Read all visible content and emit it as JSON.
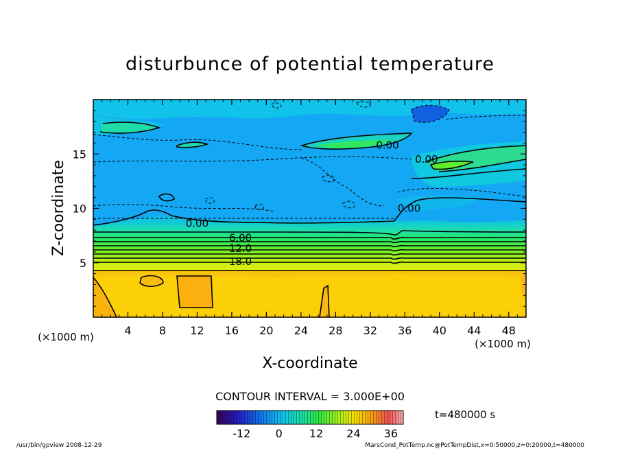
{
  "chart_data": {
    "type": "heatmap",
    "title": "disturbunce of potential temperature",
    "xlabel": "X-coordinate",
    "ylabel": "Z-coordinate",
    "x_unit": "(×1000 m)",
    "y_unit": "(×1000 m)",
    "xlim": [
      0,
      50
    ],
    "ylim": [
      0,
      20
    ],
    "x_ticks": [
      4,
      8,
      12,
      16,
      20,
      24,
      28,
      32,
      36,
      40,
      44,
      48
    ],
    "y_ticks": [
      5,
      10,
      15
    ],
    "contour_labels": [
      {
        "text": "0.00",
        "x": 12.0,
        "z": 8.6
      },
      {
        "text": "6.00",
        "x": 17.0,
        "z": 7.3
      },
      {
        "text": "12.0",
        "x": 17.0,
        "z": 6.3
      },
      {
        "text": "18.0",
        "x": 17.0,
        "z": 5.1
      },
      {
        "text": "0.00",
        "x": 34.0,
        "z": 15.8
      },
      {
        "text": "0.00",
        "x": 38.5,
        "z": 14.5
      },
      {
        "text": "0.00",
        "x": 36.5,
        "z": 10.0
      }
    ],
    "field_summary": [
      {
        "z_range": [
          0,
          4.5
        ],
        "value": 27
      },
      {
        "z_range": [
          4.5,
          8.5
        ],
        "value": "gradient 24 to 3"
      },
      {
        "z_range": [
          8.5,
          20
        ],
        "value": 0
      }
    ],
    "contour_interval_label": "CONTOUR INTERVAL = 3.000E+00",
    "colorbar": {
      "ticks": [
        -12,
        0,
        12,
        24,
        36
      ],
      "range": [
        -20,
        40
      ]
    },
    "time_label": "t=480000 s",
    "grid": false
  },
  "footer": {
    "left": "/usr/bin/gpview   2008-12-29",
    "right": "MarsCond_PotTemp.nc@PotTempDist,x=0:50000,z=0:20000,t=480000"
  }
}
